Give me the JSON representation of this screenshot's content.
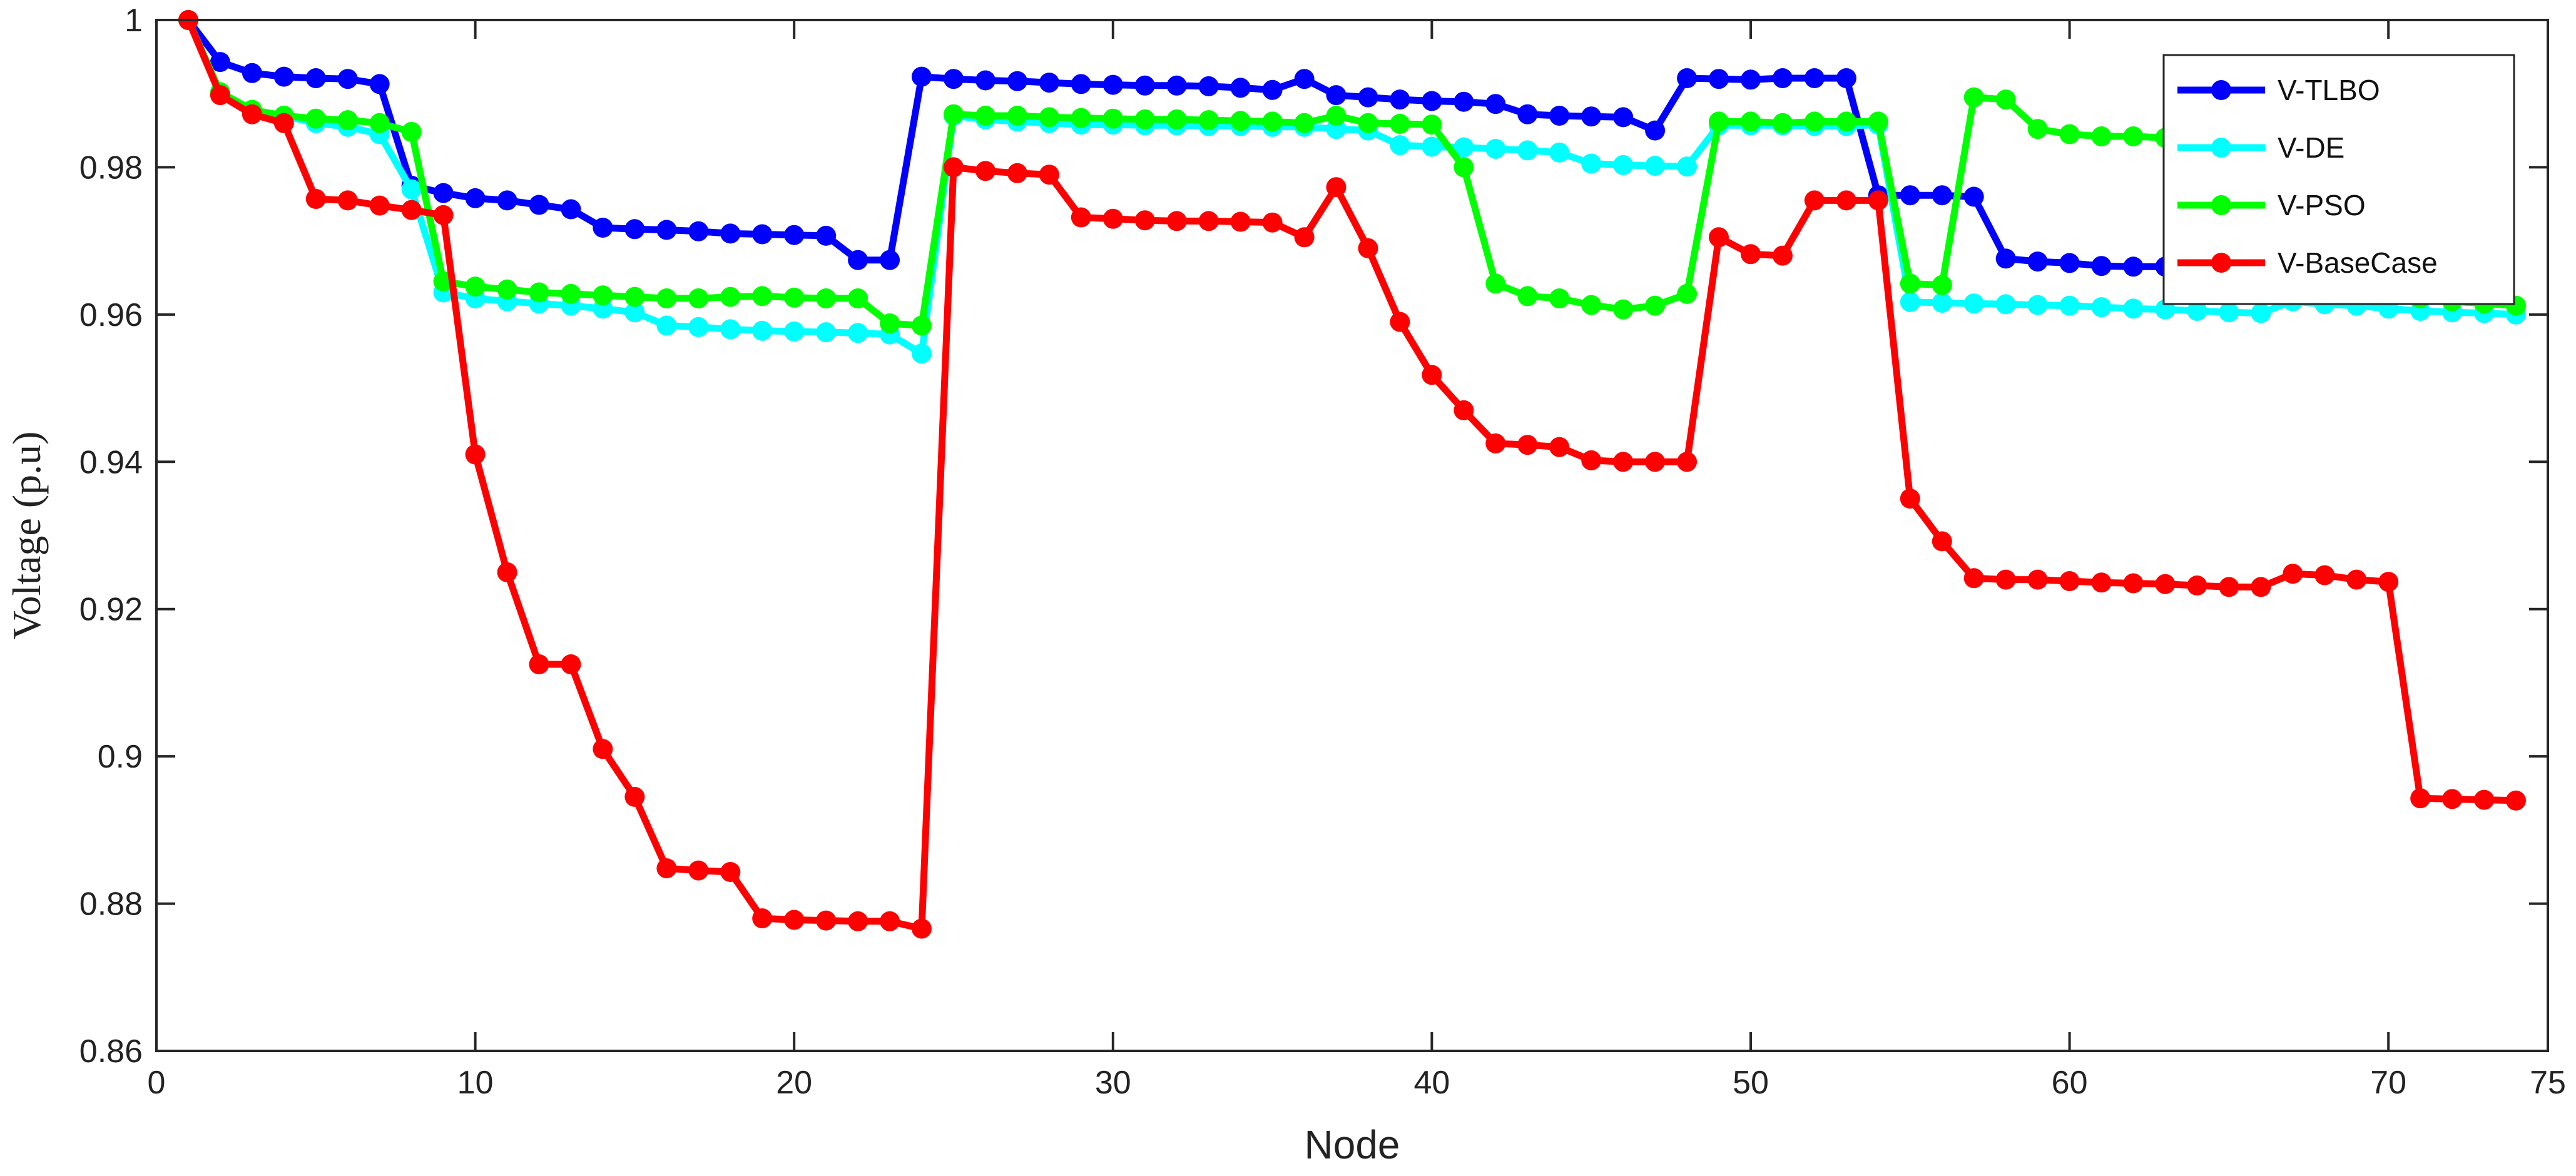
{
  "chart_data": {
    "type": "line",
    "title": "",
    "xlabel": "Node",
    "ylabel": "Voltage (p.u)",
    "xlim": [
      0,
      75
    ],
    "ylim": [
      0.86,
      1.0
    ],
    "xticks": [
      0,
      10,
      20,
      30,
      40,
      50,
      60,
      70,
      75
    ],
    "yticks": [
      0.86,
      0.88,
      0.9,
      0.92,
      0.94,
      0.96,
      0.98,
      1
    ],
    "xtick_labels": [
      "0",
      "10",
      "20",
      "30",
      "40",
      "50",
      "60",
      "70",
      "75"
    ],
    "ytick_labels": [
      "0.86",
      "0.88",
      "0.9",
      "0.92",
      "0.94",
      "0.96",
      "0.98",
      "1"
    ],
    "grid": false,
    "legend_position": "top-right",
    "series": [
      {
        "name": "V-TLBO",
        "color": "#0000ff",
        "x": [
          1,
          2,
          3,
          4,
          5,
          6,
          7,
          8,
          9,
          10,
          11,
          12,
          13,
          14,
          15,
          16,
          17,
          18,
          19,
          20,
          21,
          22,
          23,
          24,
          25,
          26,
          27,
          28,
          29,
          30,
          31,
          32,
          33,
          34,
          35,
          36,
          37,
          38,
          39,
          40,
          41,
          42,
          43,
          44,
          45,
          46,
          47,
          48,
          49,
          50,
          51,
          52,
          53,
          54,
          55,
          56,
          57,
          58,
          59,
          60,
          61,
          62,
          63,
          64,
          65
        ],
        "y": [
          1.0,
          0.9943,
          0.9928,
          0.9923,
          0.9921,
          0.992,
          0.9913,
          0.9775,
          0.9765,
          0.9758,
          0.9755,
          0.9749,
          0.9743,
          0.9718,
          0.9716,
          0.9715,
          0.9713,
          0.971,
          0.9709,
          0.9708,
          0.9707,
          0.9674,
          0.9674,
          0.9923,
          0.992,
          0.9918,
          0.9917,
          0.9915,
          0.9913,
          0.9912,
          0.9911,
          0.9911,
          0.991,
          0.9908,
          0.9905,
          0.992,
          0.9898,
          0.9895,
          0.9892,
          0.989,
          0.9889,
          0.9886,
          0.9872,
          0.987,
          0.9869,
          0.9868,
          0.985,
          0.9921,
          0.992,
          0.9919,
          0.9921,
          0.9921,
          0.9921,
          0.9762,
          0.9762,
          0.9762,
          0.976,
          0.9676,
          0.9672,
          0.967,
          0.9666,
          0.9665,
          0.9665,
          0.9664,
          0.9665
        ]
      },
      {
        "name": "V-DE",
        "color": "#00ffff",
        "x": [
          1,
          2,
          3,
          4,
          5,
          6,
          7,
          8,
          9,
          10,
          11,
          12,
          13,
          14,
          15,
          16,
          17,
          18,
          19,
          20,
          21,
          22,
          23,
          24,
          25,
          26,
          27,
          28,
          29,
          30,
          31,
          32,
          33,
          34,
          35,
          36,
          37,
          38,
          39,
          40,
          41,
          42,
          43,
          44,
          45,
          46,
          47,
          48,
          49,
          50,
          51,
          52,
          53,
          54,
          55,
          56,
          57,
          58,
          59,
          60,
          61,
          62,
          63,
          64,
          65,
          66,
          67,
          68,
          69,
          70,
          71,
          72,
          73,
          74
        ],
        "y": [
          1.0,
          0.99,
          0.9875,
          0.987,
          0.986,
          0.9855,
          0.9845,
          0.977,
          0.963,
          0.9622,
          0.9618,
          0.9615,
          0.9612,
          0.9608,
          0.9603,
          0.9585,
          0.9583,
          0.958,
          0.9578,
          0.9577,
          0.9576,
          0.9575,
          0.9573,
          0.9547,
          0.987,
          0.9865,
          0.9862,
          0.986,
          0.9858,
          0.9858,
          0.9857,
          0.9857,
          0.9856,
          0.9856,
          0.9855,
          0.9855,
          0.9852,
          0.985,
          0.983,
          0.9828,
          0.9827,
          0.9825,
          0.9823,
          0.982,
          0.9805,
          0.9803,
          0.9802,
          0.9801,
          0.9857,
          0.9857,
          0.9857,
          0.9856,
          0.9856,
          0.9858,
          0.9617,
          0.9616,
          0.9615,
          0.9614,
          0.9613,
          0.9612,
          0.961,
          0.9608,
          0.9607,
          0.9605,
          0.9603,
          0.9602,
          0.9618,
          0.9614,
          0.9612,
          0.9608,
          0.9605,
          0.9603,
          0.9602,
          0.96
        ]
      },
      {
        "name": "V-PSO",
        "color": "#00ff00",
        "x": [
          1,
          2,
          3,
          4,
          5,
          6,
          7,
          8,
          9,
          10,
          11,
          12,
          13,
          14,
          15,
          16,
          17,
          18,
          19,
          20,
          21,
          22,
          23,
          24,
          25,
          26,
          27,
          28,
          29,
          30,
          31,
          32,
          33,
          34,
          35,
          36,
          37,
          38,
          39,
          40,
          41,
          42,
          43,
          44,
          45,
          46,
          47,
          48,
          49,
          50,
          51,
          52,
          53,
          54,
          55,
          56,
          57,
          58,
          59,
          60,
          61,
          62,
          63,
          64,
          65,
          66,
          67,
          68,
          69,
          70,
          71,
          72,
          73,
          74
        ],
        "y": [
          1.0,
          0.9902,
          0.9878,
          0.987,
          0.9866,
          0.9864,
          0.986,
          0.9848,
          0.9645,
          0.9638,
          0.9634,
          0.963,
          0.9628,
          0.9626,
          0.9624,
          0.9622,
          0.9622,
          0.9624,
          0.9625,
          0.9623,
          0.9622,
          0.9622,
          0.9588,
          0.9585,
          0.9872,
          0.987,
          0.987,
          0.9868,
          0.9867,
          0.9866,
          0.9865,
          0.9865,
          0.9864,
          0.9863,
          0.9862,
          0.986,
          0.987,
          0.986,
          0.9859,
          0.9858,
          0.98,
          0.9642,
          0.9625,
          0.9622,
          0.9613,
          0.9607,
          0.9612,
          0.9628,
          0.9862,
          0.9862,
          0.986,
          0.9862,
          0.9862,
          0.9862,
          0.9642,
          0.964,
          0.9895,
          0.9892,
          0.9852,
          0.9845,
          0.9842,
          0.9842,
          0.984,
          0.984,
          0.9838,
          0.9836,
          0.963,
          0.963,
          0.9628,
          0.9627,
          0.9622,
          0.9618,
          0.9615,
          0.9612
        ]
      },
      {
        "name": "V-BaseCase",
        "color": "#ff0000",
        "x": [
          1,
          2,
          3,
          4,
          5,
          6,
          7,
          8,
          9,
          10,
          11,
          12,
          13,
          14,
          15,
          16,
          17,
          18,
          19,
          20,
          21,
          22,
          23,
          24,
          25,
          26,
          27,
          28,
          29,
          30,
          31,
          32,
          33,
          34,
          35,
          36,
          37,
          38,
          39,
          40,
          41,
          42,
          43,
          44,
          45,
          46,
          47,
          48,
          49,
          50,
          51,
          52,
          53,
          54,
          55,
          56,
          57,
          58,
          59,
          60,
          61,
          62,
          63,
          64,
          65,
          66,
          67,
          68,
          69,
          70,
          71,
          72,
          73,
          74
        ],
        "y": [
          1.0,
          0.9898,
          0.9872,
          0.986,
          0.9757,
          0.9755,
          0.9748,
          0.9742,
          0.9735,
          0.941,
          0.925,
          0.9125,
          0.9125,
          0.901,
          0.8945,
          0.8848,
          0.8845,
          0.8843,
          0.878,
          0.8778,
          0.8777,
          0.8776,
          0.8776,
          0.8766,
          0.98,
          0.9795,
          0.9792,
          0.979,
          0.9732,
          0.973,
          0.9728,
          0.9727,
          0.9727,
          0.9726,
          0.9725,
          0.9705,
          0.9773,
          0.969,
          0.959,
          0.9518,
          0.947,
          0.9425,
          0.9423,
          0.942,
          0.9402,
          0.94,
          0.94,
          0.94,
          0.9705,
          0.9682,
          0.968,
          0.9755,
          0.9755,
          0.9755,
          0.935,
          0.9292,
          0.9242,
          0.924,
          0.924,
          0.9238,
          0.9236,
          0.9235,
          0.9234,
          0.9232,
          0.923,
          0.923,
          0.9248,
          0.9246,
          0.924,
          0.9237,
          0.8943,
          0.8942,
          0.8941,
          0.894
        ]
      }
    ]
  }
}
